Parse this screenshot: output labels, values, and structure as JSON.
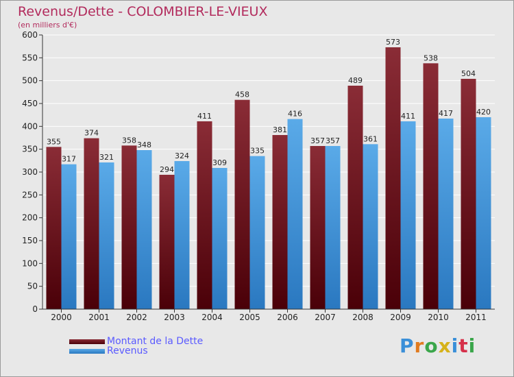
{
  "title": "Revenus/Dette - COLOMBIER-LE-VIEUX",
  "subtitle": "(en milliers d'€)",
  "logo": "Proxiti",
  "colors": {
    "dette_top": "#8a2c36",
    "dette_bottom": "#4a0008",
    "revenus_top": "#5aaae8",
    "revenus_bottom": "#2a78c0",
    "grid": "#ffffff",
    "axis": "#333333",
    "text": "#222222"
  },
  "chart_data": {
    "type": "bar",
    "title": "Revenus/Dette - COLOMBIER-LE-VIEUX",
    "ylabel": "(en milliers d'€)",
    "xlabel": "",
    "categories": [
      "2000",
      "2001",
      "2002",
      "2003",
      "2004",
      "2005",
      "2006",
      "2007",
      "2008",
      "2009",
      "2010",
      "2011"
    ],
    "series": [
      {
        "name": "Montant de la Dette",
        "values": [
          355,
          374,
          358,
          294,
          411,
          458,
          381,
          357,
          489,
          573,
          538,
          504
        ]
      },
      {
        "name": "Revenus",
        "values": [
          317,
          321,
          348,
          324,
          309,
          335,
          416,
          357,
          361,
          411,
          417,
          420
        ]
      }
    ],
    "ylim": [
      0,
      600
    ],
    "yticks": [
      0,
      50,
      100,
      150,
      200,
      250,
      300,
      350,
      400,
      450,
      500,
      550,
      600
    ],
    "grid": true,
    "legend": "bottom-left"
  }
}
